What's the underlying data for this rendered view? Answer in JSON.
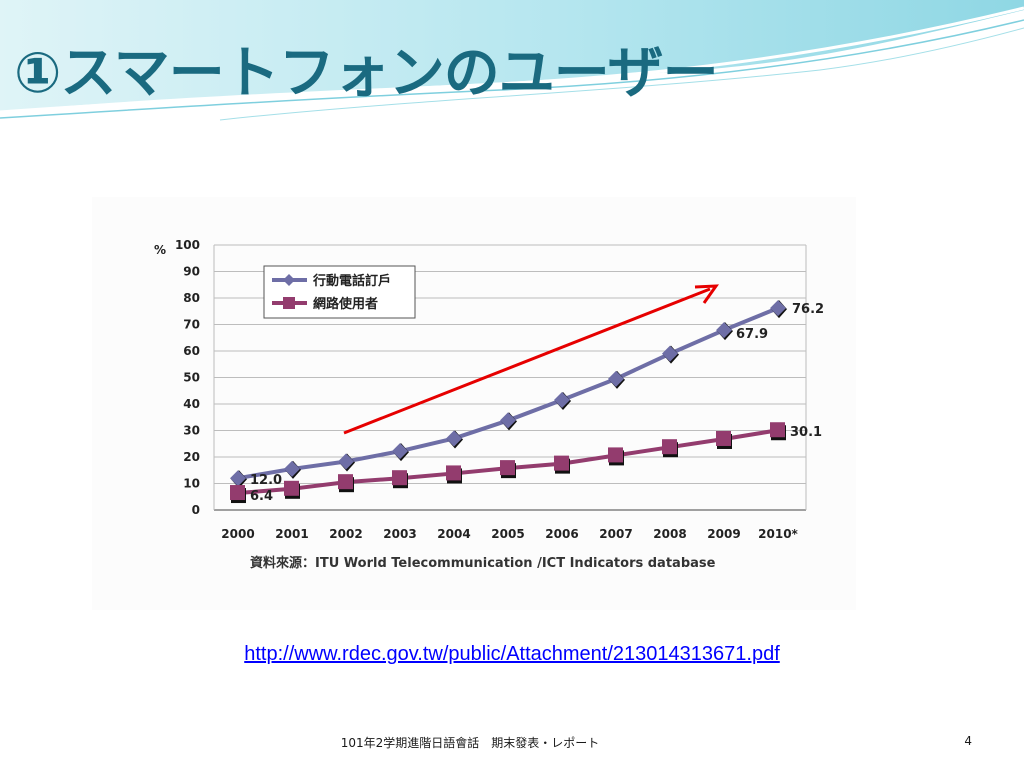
{
  "slide": {
    "title": "①スマートフォンのユーザー",
    "source_url": "http://www.rdec.gov.tw/public/Attachment/213014313671.pdf",
    "footer": "101年2学期進階日語會話　期末發表・レポート",
    "page_number": "4",
    "colors": {
      "title": "#1a6a80",
      "wave_light": "#c5ecf2",
      "wave_mid": "#7fd0de",
      "link": "#0000ff",
      "arrow": "#e60000"
    }
  },
  "chart_data": {
    "type": "line",
    "ylabel": "%",
    "ylim": [
      0,
      100
    ],
    "yticks": [
      "0",
      "10",
      "20",
      "30",
      "40",
      "50",
      "60",
      "70",
      "80",
      "90",
      "100"
    ],
    "categories": [
      "2000",
      "2001",
      "2002",
      "2003",
      "2004",
      "2005",
      "2006",
      "2007",
      "2008",
      "2009",
      "2010*"
    ],
    "series": [
      {
        "name": "行動電話訂戶",
        "color": "#6e6ea6",
        "marker": "diamond",
        "values": [
          12.0,
          15.5,
          18.3,
          22.2,
          27.0,
          33.8,
          41.5,
          49.5,
          59.0,
          67.9,
          76.2
        ]
      },
      {
        "name": "網路使用者",
        "color": "#933c6e",
        "marker": "square",
        "values": [
          6.4,
          8.0,
          10.5,
          12.0,
          13.8,
          15.8,
          17.5,
          20.6,
          23.7,
          26.8,
          30.1
        ]
      }
    ],
    "data_labels": [
      {
        "series": 0,
        "index": 0,
        "text": "12.0"
      },
      {
        "series": 0,
        "index": 9,
        "text": "67.9"
      },
      {
        "series": 0,
        "index": 10,
        "text": "76.2"
      },
      {
        "series": 1,
        "index": 0,
        "text": "6.4"
      },
      {
        "series": 1,
        "index": 10,
        "text": "30.1"
      }
    ],
    "legend_position": "top-left",
    "grid": true,
    "source_note": "資料來源：ITU World Telecommunication /ICT Indicators database",
    "annotation": "red upward arrow"
  }
}
